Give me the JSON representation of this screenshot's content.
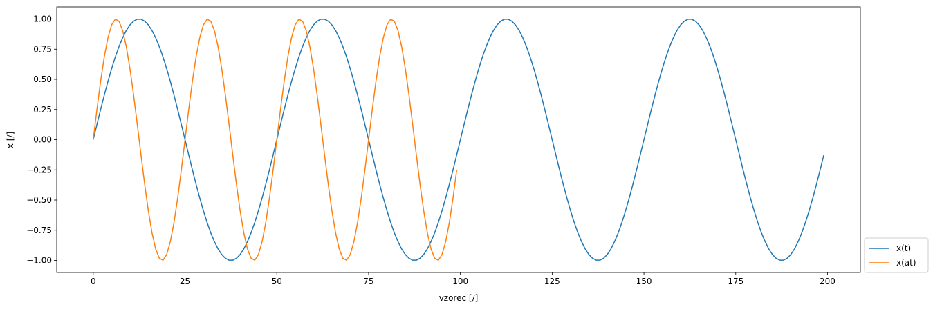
{
  "chart_data": {
    "type": "line",
    "x_label": "vzorec [/]",
    "y_label": "x [/]",
    "xlim": [
      -9.95,
      208.95
    ],
    "ylim": [
      -1.1,
      1.1
    ],
    "xticks": [
      0,
      25,
      50,
      75,
      100,
      125,
      150,
      175,
      200
    ],
    "yticks": [
      {
        "value": -1,
        "label": "−1.00"
      },
      {
        "value": -0.75,
        "label": "−0.75"
      },
      {
        "value": -0.5,
        "label": "−0.50"
      },
      {
        "value": -0.25,
        "label": "−0.25"
      },
      {
        "value": 0,
        "label": "0.00"
      },
      {
        "value": 0.25,
        "label": "0.25"
      },
      {
        "value": 0.5,
        "label": "0.50"
      },
      {
        "value": 0.75,
        "label": "0.75"
      },
      {
        "value": 1,
        "label": "1.00"
      }
    ],
    "grid": false,
    "legend": "outside lower right",
    "series": [
      {
        "name": "x(t)",
        "color": "#1f77b4",
        "x": [
          0,
          1,
          2,
          3,
          4,
          5,
          6,
          7,
          8,
          9,
          10,
          11,
          12,
          13,
          14,
          15,
          16,
          17,
          18,
          19,
          20,
          21,
          22,
          23,
          24,
          25,
          26,
          27,
          28,
          29,
          30,
          31,
          32,
          33,
          34,
          35,
          36,
          37,
          38,
          39,
          40,
          41,
          42,
          43,
          44,
          45,
          46,
          47,
          48,
          49,
          50,
          51,
          52,
          53,
          54,
          55,
          56,
          57,
          58,
          59,
          60,
          61,
          62,
          63,
          64,
          65,
          66,
          67,
          68,
          69,
          70,
          71,
          72,
          73,
          74,
          75,
          76,
          77,
          78,
          79,
          80,
          81,
          82,
          83,
          84,
          85,
          86,
          87,
          88,
          89,
          90,
          91,
          92,
          93,
          94,
          95,
          96,
          97,
          98,
          99,
          100,
          101,
          102,
          103,
          104,
          105,
          106,
          107,
          108,
          109,
          110,
          111,
          112,
          113,
          114,
          115,
          116,
          117,
          118,
          119,
          120,
          121,
          122,
          123,
          124,
          125,
          126,
          127,
          128,
          129,
          130,
          131,
          132,
          133,
          134,
          135,
          136,
          137,
          138,
          139,
          140,
          141,
          142,
          143,
          144,
          145,
          146,
          147,
          148,
          149,
          150,
          151,
          152,
          153,
          154,
          155,
          156,
          157,
          158,
          159,
          160,
          161,
          162,
          163,
          164,
          165,
          166,
          167,
          168,
          169,
          170,
          171,
          172,
          173,
          174,
          175,
          176,
          177,
          178,
          179,
          180,
          181,
          182,
          183,
          184,
          185,
          186,
          187,
          188,
          189,
          190,
          191,
          192,
          193,
          194,
          195,
          196,
          197,
          198,
          199
        ],
        "values": [
          0,
          0.125,
          0.249,
          0.368,
          0.482,
          0.588,
          0.685,
          0.771,
          0.844,
          0.905,
          0.951,
          0.982,
          0.998,
          0.998,
          0.982,
          0.951,
          0.905,
          0.844,
          0.771,
          0.685,
          0.588,
          0.482,
          0.368,
          0.249,
          0.125,
          0,
          -0.125,
          -0.249,
          -0.368,
          -0.482,
          -0.588,
          -0.685,
          -0.771,
          -0.844,
          -0.905,
          -0.951,
          -0.982,
          -0.998,
          -0.998,
          -0.982,
          -0.951,
          -0.905,
          -0.844,
          -0.771,
          -0.685,
          -0.588,
          -0.482,
          -0.368,
          -0.249,
          -0.125,
          0,
          0.125,
          0.249,
          0.368,
          0.482,
          0.588,
          0.685,
          0.771,
          0.844,
          0.905,
          0.951,
          0.982,
          0.998,
          0.998,
          0.982,
          0.951,
          0.905,
          0.844,
          0.771,
          0.685,
          0.588,
          0.482,
          0.368,
          0.249,
          0.125,
          0,
          -0.125,
          -0.249,
          -0.368,
          -0.482,
          -0.588,
          -0.685,
          -0.771,
          -0.844,
          -0.905,
          -0.951,
          -0.982,
          -0.998,
          -0.998,
          -0.982,
          -0.951,
          -0.905,
          -0.844,
          -0.771,
          -0.685,
          -0.588,
          -0.482,
          -0.368,
          -0.249,
          -0.125,
          0,
          0.125,
          0.249,
          0.368,
          0.482,
          0.588,
          0.685,
          0.771,
          0.844,
          0.905,
          0.951,
          0.982,
          0.998,
          0.998,
          0.982,
          0.951,
          0.905,
          0.844,
          0.771,
          0.685,
          0.588,
          0.482,
          0.368,
          0.249,
          0.125,
          0,
          -0.125,
          -0.249,
          -0.368,
          -0.482,
          -0.588,
          -0.685,
          -0.771,
          -0.844,
          -0.905,
          -0.951,
          -0.982,
          -0.998,
          -0.998,
          -0.982,
          -0.951,
          -0.905,
          -0.844,
          -0.771,
          -0.685,
          -0.588,
          -0.482,
          -0.368,
          -0.249,
          -0.125,
          0,
          0.125,
          0.249,
          0.368,
          0.482,
          0.588,
          0.685,
          0.771,
          0.844,
          0.905,
          0.951,
          0.982,
          0.998,
          0.998,
          0.982,
          0.951,
          0.905,
          0.844,
          0.771,
          0.685,
          0.588,
          0.482,
          0.368,
          0.249,
          0.125,
          0,
          -0.125,
          -0.249,
          -0.368,
          -0.482,
          -0.588,
          -0.685,
          -0.771,
          -0.844,
          -0.905,
          -0.951,
          -0.982,
          -0.998,
          -0.998,
          -0.982,
          -0.951,
          -0.905,
          -0.844,
          -0.771,
          -0.685,
          -0.588,
          -0.482,
          -0.368,
          -0.249,
          -0.125
        ]
      },
      {
        "name": "x(at)",
        "color": "#ff7f0e",
        "x": [
          0,
          1,
          2,
          3,
          4,
          5,
          6,
          7,
          8,
          9,
          10,
          11,
          12,
          13,
          14,
          15,
          16,
          17,
          18,
          19,
          20,
          21,
          22,
          23,
          24,
          25,
          26,
          27,
          28,
          29,
          30,
          31,
          32,
          33,
          34,
          35,
          36,
          37,
          38,
          39,
          40,
          41,
          42,
          43,
          44,
          45,
          46,
          47,
          48,
          49,
          50,
          51,
          52,
          53,
          54,
          55,
          56,
          57,
          58,
          59,
          60,
          61,
          62,
          63,
          64,
          65,
          66,
          67,
          68,
          69,
          70,
          71,
          72,
          73,
          74,
          75,
          76,
          77,
          78,
          79,
          80,
          81,
          82,
          83,
          84,
          85,
          86,
          87,
          88,
          89,
          90,
          91,
          92,
          93,
          94,
          95,
          96,
          97,
          98,
          99
        ],
        "values": [
          0,
          0.249,
          0.482,
          0.685,
          0.844,
          0.951,
          0.998,
          0.982,
          0.905,
          0.771,
          0.588,
          0.368,
          0.125,
          -0.125,
          -0.368,
          -0.588,
          -0.771,
          -0.905,
          -0.982,
          -0.998,
          -0.951,
          -0.844,
          -0.685,
          -0.482,
          -0.249,
          0,
          0.249,
          0.482,
          0.685,
          0.844,
          0.951,
          0.998,
          0.982,
          0.905,
          0.771,
          0.588,
          0.368,
          0.125,
          -0.125,
          -0.368,
          -0.588,
          -0.771,
          -0.905,
          -0.982,
          -0.998,
          -0.951,
          -0.844,
          -0.685,
          -0.482,
          -0.249,
          0,
          0.249,
          0.482,
          0.685,
          0.844,
          0.951,
          0.998,
          0.982,
          0.905,
          0.771,
          0.588,
          0.368,
          0.125,
          -0.125,
          -0.368,
          -0.588,
          -0.771,
          -0.905,
          -0.982,
          -0.998,
          -0.951,
          -0.844,
          -0.685,
          -0.482,
          -0.249,
          0,
          0.249,
          0.482,
          0.685,
          0.844,
          0.951,
          0.998,
          0.982,
          0.905,
          0.771,
          0.588,
          0.368,
          0.125,
          -0.125,
          -0.368,
          -0.588,
          -0.771,
          -0.905,
          -0.982,
          -0.998,
          -0.951,
          -0.844,
          -0.685,
          -0.482,
          -0.249
        ]
      }
    ]
  }
}
